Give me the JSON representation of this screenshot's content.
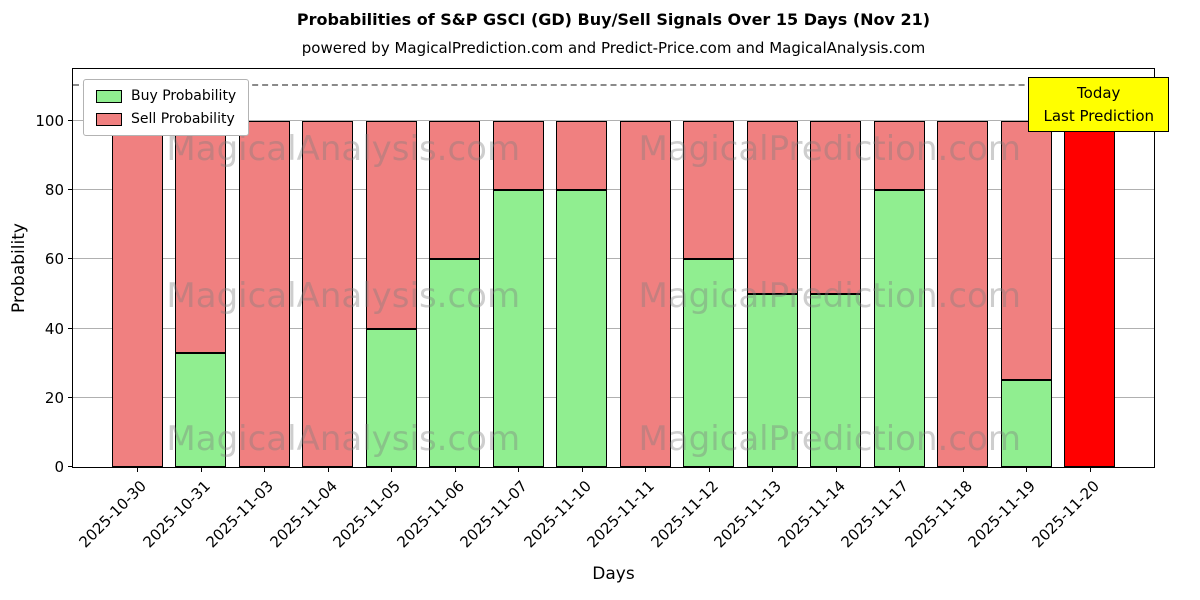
{
  "chart_data": {
    "type": "bar",
    "stacked": true,
    "title": "Probabilities of S&P GSCI (GD) Buy/Sell Signals Over 15 Days (Nov 21)",
    "subtitle": "powered by MagicalPrediction.com and Predict-Price.com and MagicalAnalysis.com",
    "xlabel": "Days",
    "ylabel": "Probability",
    "ylim": [
      0,
      115
    ],
    "yticks": [
      0,
      20,
      40,
      60,
      80,
      100
    ],
    "grid": true,
    "dashed_line_y": 110,
    "legend_position": "top-left",
    "categories": [
      "2025-10-30",
      "2025-10-31",
      "2025-11-03",
      "2025-11-04",
      "2025-11-05",
      "2025-11-06",
      "2025-11-07",
      "2025-11-10",
      "2025-11-11",
      "2025-11-12",
      "2025-11-13",
      "2025-11-14",
      "2025-11-17",
      "2025-11-18",
      "2025-11-19",
      "2025-11-20"
    ],
    "series": [
      {
        "name": "Buy Probability",
        "color": "#90ee90",
        "values": [
          0,
          33,
          0,
          0,
          40,
          60,
          80,
          80,
          0,
          60,
          50,
          50,
          80,
          0,
          25,
          0
        ]
      },
      {
        "name": "Sell Probability",
        "color": "#f08080",
        "values": [
          100,
          67,
          100,
          100,
          60,
          40,
          20,
          20,
          100,
          40,
          50,
          50,
          20,
          100,
          75,
          0
        ]
      }
    ],
    "today": {
      "index": 15,
      "category": "2025-11-20",
      "value": 100,
      "color": "#ff0000"
    },
    "today_box": {
      "lines": [
        "Today",
        "Last Prediction"
      ],
      "bg": "#ffff00"
    },
    "watermarks": [
      "MagicalAnalysis.com",
      "MagicalPrediction.com"
    ]
  }
}
